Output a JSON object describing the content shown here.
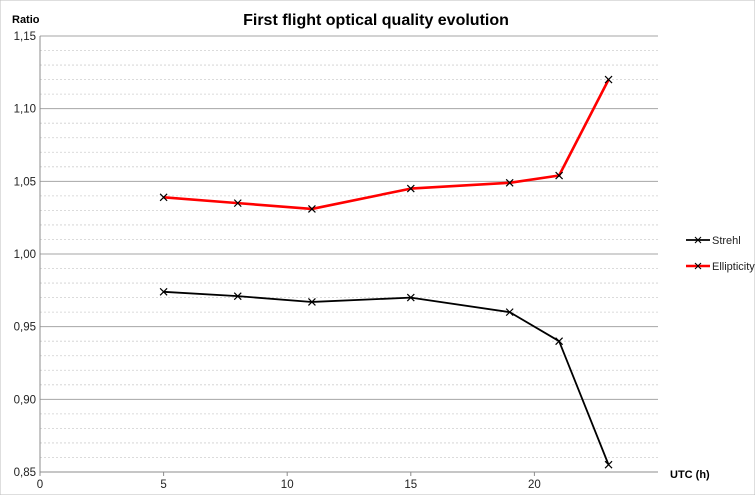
{
  "chart_data": {
    "type": "line",
    "title": "First flight optical quality evolution",
    "xlabel": "UTC (h)",
    "ylabel": "Ratio",
    "xlim": [
      0,
      25
    ],
    "ylim": [
      0.85,
      1.15
    ],
    "x_ticks": [
      0,
      5,
      10,
      15,
      20
    ],
    "x_tick_labels": [
      "0",
      "5",
      "10",
      "15",
      "20"
    ],
    "y_ticks": [
      0.85,
      0.9,
      0.95,
      1.0,
      1.05,
      1.1,
      1.15
    ],
    "y_tick_labels": [
      "0,85",
      "0,90",
      "0,95",
      "1,00",
      "1,05",
      "1,10",
      "1,15"
    ],
    "minor_y_step": 0.01,
    "grid": true,
    "legend_position": "right",
    "series": [
      {
        "name": "Strehl",
        "color": "#000000",
        "marker": "x",
        "x": [
          5,
          8,
          11,
          15,
          19,
          21,
          23
        ],
        "y": [
          0.974,
          0.971,
          0.967,
          0.97,
          0.96,
          0.94,
          0.855
        ]
      },
      {
        "name": "Ellipticity",
        "color": "#ff0000",
        "marker": "x",
        "x": [
          5,
          8,
          11,
          15,
          19,
          21,
          23
        ],
        "y": [
          1.039,
          1.035,
          1.031,
          1.045,
          1.049,
          1.054,
          1.12
        ]
      }
    ]
  }
}
